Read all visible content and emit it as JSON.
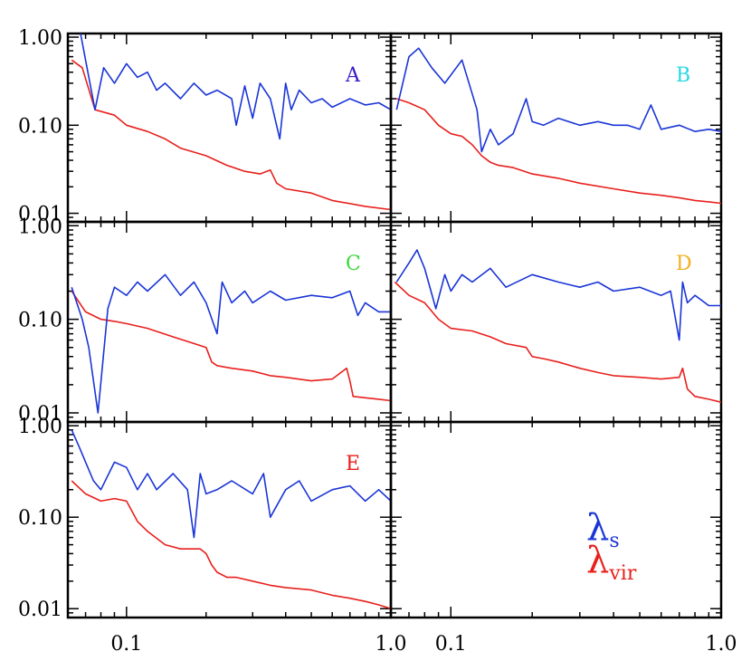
{
  "chart_data": {
    "type": "line",
    "layout": "3x2 grid of small multiples, shared log axes",
    "x_scale": "log",
    "y_scale": "log",
    "xlim": [
      0.06,
      1.0
    ],
    "ylim": [
      0.008,
      1.1
    ],
    "x_tick_labels": [
      "0.1",
      "1.0"
    ],
    "x_tick_values": [
      0.1,
      1.0
    ],
    "y_tick_labels": [
      "0.01",
      "0.10",
      "1.00"
    ],
    "y_tick_values": [
      0.01,
      0.1,
      1.0
    ],
    "grid": false,
    "legend": {
      "placement": "bottom-right empty panel",
      "entries": [
        {
          "symbol": "λ",
          "sub": "s",
          "color": "#1a35d6"
        },
        {
          "symbol": "λ",
          "sub": "vir",
          "color": "#e8201c"
        }
      ]
    },
    "series_colors": {
      "lambda_s": "#1a35d6",
      "lambda_vir": "#e8201c"
    },
    "panels": [
      {
        "label": "A",
        "label_color": "#3a18c8",
        "lambda_s": {
          "x": [
            0.067,
            0.076,
            0.082,
            0.09,
            0.1,
            0.11,
            0.12,
            0.13,
            0.14,
            0.16,
            0.18,
            0.2,
            0.22,
            0.25,
            0.26,
            0.28,
            0.3,
            0.32,
            0.35,
            0.38,
            0.4,
            0.42,
            0.45,
            0.5,
            0.55,
            0.6,
            0.7,
            0.8,
            0.9,
            1.0
          ],
          "y": [
            1.1,
            0.15,
            0.45,
            0.3,
            0.5,
            0.35,
            0.4,
            0.25,
            0.3,
            0.2,
            0.3,
            0.22,
            0.25,
            0.2,
            0.1,
            0.28,
            0.12,
            0.3,
            0.2,
            0.07,
            0.3,
            0.15,
            0.25,
            0.18,
            0.2,
            0.16,
            0.2,
            0.17,
            0.18,
            0.15
          ]
        },
        "lambda_vir": {
          "x": [
            0.062,
            0.068,
            0.076,
            0.09,
            0.1,
            0.12,
            0.14,
            0.16,
            0.2,
            0.24,
            0.28,
            0.32,
            0.35,
            0.37,
            0.4,
            0.5,
            0.6,
            0.8,
            1.0
          ],
          "y": [
            0.55,
            0.45,
            0.15,
            0.13,
            0.1,
            0.085,
            0.07,
            0.055,
            0.045,
            0.035,
            0.03,
            0.028,
            0.031,
            0.022,
            0.019,
            0.017,
            0.014,
            0.012,
            0.011
          ]
        }
      },
      {
        "label": "B",
        "label_color": "#28d8e0",
        "lambda_s": {
          "x": [
            0.063,
            0.07,
            0.076,
            0.085,
            0.095,
            0.11,
            0.125,
            0.13,
            0.14,
            0.15,
            0.17,
            0.19,
            0.2,
            0.22,
            0.25,
            0.3,
            0.35,
            0.4,
            0.45,
            0.5,
            0.55,
            0.6,
            0.7,
            0.8,
            0.9,
            1.0
          ],
          "y": [
            0.15,
            0.6,
            0.75,
            0.45,
            0.3,
            0.55,
            0.15,
            0.05,
            0.09,
            0.06,
            0.08,
            0.2,
            0.11,
            0.1,
            0.12,
            0.1,
            0.11,
            0.1,
            0.1,
            0.09,
            0.17,
            0.09,
            0.1,
            0.085,
            0.09,
            0.085
          ]
        },
        "lambda_vir": {
          "x": [
            0.063,
            0.07,
            0.08,
            0.09,
            0.1,
            0.11,
            0.12,
            0.13,
            0.14,
            0.15,
            0.17,
            0.2,
            0.25,
            0.3,
            0.4,
            0.5,
            0.6,
            0.7,
            0.8,
            0.9,
            1.0
          ],
          "y": [
            0.2,
            0.18,
            0.15,
            0.1,
            0.08,
            0.075,
            0.06,
            0.045,
            0.038,
            0.035,
            0.033,
            0.028,
            0.025,
            0.022,
            0.019,
            0.017,
            0.016,
            0.015,
            0.014,
            0.0135,
            0.013
          ]
        }
      },
      {
        "label": "C",
        "label_color": "#3ad83a",
        "lambda_s": {
          "x": [
            0.062,
            0.068,
            0.072,
            0.078,
            0.085,
            0.09,
            0.1,
            0.11,
            0.12,
            0.14,
            0.16,
            0.18,
            0.2,
            0.22,
            0.23,
            0.25,
            0.28,
            0.3,
            0.35,
            0.4,
            0.5,
            0.6,
            0.7,
            0.75,
            0.8,
            0.9,
            1.0
          ],
          "y": [
            0.22,
            0.1,
            0.05,
            0.01,
            0.13,
            0.22,
            0.18,
            0.25,
            0.2,
            0.3,
            0.18,
            0.25,
            0.15,
            0.07,
            0.25,
            0.15,
            0.2,
            0.15,
            0.2,
            0.16,
            0.18,
            0.17,
            0.2,
            0.11,
            0.15,
            0.12,
            0.12
          ]
        },
        "lambda_vir": {
          "x": [
            0.062,
            0.07,
            0.08,
            0.09,
            0.1,
            0.12,
            0.15,
            0.2,
            0.21,
            0.22,
            0.25,
            0.3,
            0.35,
            0.4,
            0.5,
            0.6,
            0.68,
            0.7,
            0.72,
            0.8,
            0.9,
            1.0
          ],
          "y": [
            0.2,
            0.12,
            0.1,
            0.095,
            0.09,
            0.08,
            0.065,
            0.05,
            0.035,
            0.032,
            0.03,
            0.028,
            0.025,
            0.024,
            0.022,
            0.023,
            0.03,
            0.022,
            0.015,
            0.0145,
            0.014,
            0.0135
          ]
        }
      },
      {
        "label": "D",
        "label_color": "#f0b020",
        "lambda_s": {
          "x": [
            0.063,
            0.07,
            0.075,
            0.08,
            0.088,
            0.095,
            0.1,
            0.11,
            0.12,
            0.14,
            0.16,
            0.2,
            0.25,
            0.3,
            0.35,
            0.4,
            0.5,
            0.6,
            0.65,
            0.7,
            0.72,
            0.75,
            0.8,
            0.9,
            1.0
          ],
          "y": [
            0.25,
            0.4,
            0.55,
            0.35,
            0.13,
            0.3,
            0.2,
            0.3,
            0.25,
            0.35,
            0.22,
            0.3,
            0.25,
            0.22,
            0.25,
            0.2,
            0.22,
            0.18,
            0.2,
            0.06,
            0.25,
            0.15,
            0.18,
            0.14,
            0.14
          ]
        },
        "lambda_vir": {
          "x": [
            0.062,
            0.07,
            0.08,
            0.09,
            0.1,
            0.12,
            0.14,
            0.16,
            0.19,
            0.2,
            0.22,
            0.25,
            0.3,
            0.35,
            0.4,
            0.5,
            0.6,
            0.7,
            0.72,
            0.75,
            0.8,
            0.9,
            1.0
          ],
          "y": [
            0.25,
            0.18,
            0.15,
            0.1,
            0.08,
            0.075,
            0.065,
            0.055,
            0.05,
            0.04,
            0.038,
            0.035,
            0.03,
            0.027,
            0.025,
            0.024,
            0.023,
            0.024,
            0.03,
            0.018,
            0.015,
            0.014,
            0.013
          ]
        }
      },
      {
        "label": "E",
        "label_color": "#e8201c",
        "lambda_s": {
          "x": [
            0.062,
            0.066,
            0.07,
            0.075,
            0.08,
            0.09,
            0.1,
            0.11,
            0.12,
            0.13,
            0.15,
            0.17,
            0.18,
            0.19,
            0.2,
            0.22,
            0.25,
            0.3,
            0.33,
            0.35,
            0.4,
            0.45,
            0.5,
            0.6,
            0.7,
            0.8,
            0.9,
            1.0
          ],
          "y": [
            0.9,
            0.6,
            0.4,
            0.25,
            0.2,
            0.4,
            0.35,
            0.2,
            0.3,
            0.2,
            0.3,
            0.2,
            0.06,
            0.3,
            0.18,
            0.2,
            0.25,
            0.18,
            0.3,
            0.1,
            0.2,
            0.25,
            0.15,
            0.2,
            0.22,
            0.15,
            0.2,
            0.15
          ]
        },
        "lambda_vir": {
          "x": [
            0.062,
            0.07,
            0.08,
            0.09,
            0.1,
            0.11,
            0.12,
            0.14,
            0.16,
            0.18,
            0.19,
            0.2,
            0.21,
            0.22,
            0.24,
            0.26,
            0.3,
            0.35,
            0.4,
            0.5,
            0.6,
            0.7,
            0.8,
            0.9,
            1.0
          ],
          "y": [
            0.25,
            0.18,
            0.15,
            0.16,
            0.15,
            0.09,
            0.07,
            0.05,
            0.045,
            0.045,
            0.045,
            0.04,
            0.03,
            0.025,
            0.022,
            0.022,
            0.02,
            0.018,
            0.017,
            0.016,
            0.014,
            0.013,
            0.012,
            0.011,
            0.01
          ]
        }
      }
    ]
  }
}
